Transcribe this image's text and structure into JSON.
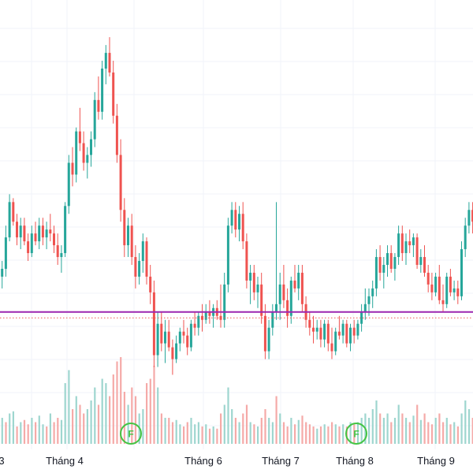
{
  "chart_data": {
    "type": "candlestick",
    "title": "",
    "xlabel": "",
    "ylabel": "",
    "x_ticks": [
      "3",
      "Tháng 4",
      "Tháng 6",
      "Tháng 7",
      "Tháng 8",
      "Tháng 9"
    ],
    "price_range": [
      0,
      100
    ],
    "grid": true,
    "colors": {
      "up": "#26a69a",
      "down": "#ef5350",
      "up_volume": "#9ed6cf",
      "down_volume": "#f5aaa8",
      "level_line": "#9c27b0",
      "dotted_line": "#ef5350",
      "flag": "#43c443",
      "grid": "#f0f3fa",
      "text": "#131722"
    },
    "horizontal_line_price": 38,
    "dotted_line_price": 36.5,
    "flag_markers": [
      {
        "label": "F",
        "near_tick": "Tháng 4"
      },
      {
        "label": "F",
        "near_tick": "Tháng 8"
      }
    ],
    "candles": [
      [
        51,
        52,
        46,
        47
      ],
      [
        47,
        51,
        44,
        49
      ],
      [
        49,
        60,
        47,
        57
      ],
      [
        57,
        68,
        56,
        66
      ],
      [
        66,
        67,
        60,
        61
      ],
      [
        61,
        63,
        55,
        57
      ],
      [
        57,
        62,
        54,
        60
      ],
      [
        60,
        62,
        55,
        56
      ],
      [
        56,
        58,
        51,
        53
      ],
      [
        53,
        60,
        52,
        58
      ],
      [
        58,
        61,
        55,
        56
      ],
      [
        56,
        62,
        54,
        60
      ],
      [
        60,
        62,
        55,
        57
      ],
      [
        57,
        61,
        54,
        59
      ],
      [
        59,
        63,
        56,
        58
      ],
      [
        58,
        60,
        53,
        55
      ],
      [
        55,
        58,
        50,
        52
      ],
      [
        52,
        55,
        48,
        53
      ],
      [
        53,
        66,
        52,
        65
      ],
      [
        65,
        78,
        63,
        76
      ],
      [
        76,
        80,
        70,
        73
      ],
      [
        73,
        85,
        71,
        84
      ],
      [
        84,
        90,
        79,
        81
      ],
      [
        81,
        84,
        74,
        76
      ],
      [
        76,
        80,
        72,
        78
      ],
      [
        78,
        84,
        75,
        82
      ],
      [
        82,
        94,
        80,
        92
      ],
      [
        92,
        98,
        87,
        89
      ],
      [
        89,
        102,
        87,
        100
      ],
      [
        100,
        106,
        96,
        104
      ],
      [
        104,
        108,
        98,
        99
      ],
      [
        99,
        102,
        86,
        88
      ],
      [
        88,
        91,
        76,
        78
      ],
      [
        78,
        82,
        61,
        64
      ],
      [
        64,
        67,
        52,
        55
      ],
      [
        55,
        62,
        52,
        60
      ],
      [
        60,
        63,
        50,
        52
      ],
      [
        52,
        55,
        44,
        47
      ],
      [
        47,
        53,
        45,
        51
      ],
      [
        51,
        58,
        48,
        56
      ],
      [
        56,
        57,
        45,
        47
      ],
      [
        47,
        50,
        40,
        43
      ],
      [
        43,
        46,
        24,
        27
      ],
      [
        27,
        38,
        24,
        35
      ],
      [
        35,
        38,
        28,
        30
      ],
      [
        30,
        36,
        25,
        33
      ],
      [
        33,
        36,
        28,
        29
      ],
      [
        29,
        31,
        22,
        26
      ],
      [
        26,
        32,
        25,
        30
      ],
      [
        30,
        34,
        28,
        33
      ],
      [
        33,
        36,
        30,
        32
      ],
      [
        32,
        34,
        27,
        29
      ],
      [
        29,
        36,
        28,
        35
      ],
      [
        35,
        38,
        32,
        34
      ],
      [
        34,
        38,
        32,
        37
      ],
      [
        37,
        40,
        33,
        36
      ],
      [
        36,
        40,
        35,
        38
      ],
      [
        38,
        41,
        35,
        37
      ],
      [
        37,
        40,
        34,
        39
      ],
      [
        39,
        41,
        36,
        37
      ],
      [
        37,
        45,
        34,
        36
      ],
      [
        36,
        48,
        34,
        45
      ],
      [
        45,
        62,
        43,
        60
      ],
      [
        60,
        66,
        58,
        64
      ],
      [
        64,
        66,
        57,
        59
      ],
      [
        59,
        65,
        56,
        63
      ],
      [
        63,
        66,
        54,
        56
      ],
      [
        56,
        58,
        44,
        46
      ],
      [
        46,
        50,
        40,
        48
      ],
      [
        48,
        50,
        41,
        43
      ],
      [
        43,
        47,
        39,
        45
      ],
      [
        45,
        48,
        35,
        37
      ],
      [
        37,
        40,
        26,
        28
      ],
      [
        28,
        36,
        26,
        34
      ],
      [
        34,
        40,
        32,
        38
      ],
      [
        38,
        66,
        36,
        40
      ],
      [
        40,
        48,
        36,
        45
      ],
      [
        45,
        50,
        39,
        41
      ],
      [
        41,
        44,
        34,
        37
      ],
      [
        37,
        47,
        35,
        46
      ],
      [
        46,
        50,
        43,
        44
      ],
      [
        44,
        50,
        41,
        48
      ],
      [
        48,
        50,
        38,
        40
      ],
      [
        40,
        42,
        34,
        36
      ],
      [
        36,
        38,
        32,
        34
      ],
      [
        34,
        37,
        30,
        33
      ],
      [
        33,
        36,
        31,
        34
      ],
      [
        34,
        36,
        29,
        31
      ],
      [
        31,
        36,
        29,
        35
      ],
      [
        35,
        36,
        28,
        30
      ],
      [
        30,
        34,
        26,
        28
      ],
      [
        28,
        34,
        27,
        33
      ],
      [
        33,
        37,
        31,
        32
      ],
      [
        32,
        36,
        30,
        35
      ],
      [
        35,
        36,
        29,
        30
      ],
      [
        30,
        35,
        28,
        34
      ],
      [
        34,
        36,
        30,
        32
      ],
      [
        32,
        36,
        31,
        35
      ],
      [
        35,
        40,
        33,
        38
      ],
      [
        38,
        44,
        36,
        40
      ],
      [
        40,
        44,
        37,
        42
      ],
      [
        42,
        46,
        39,
        44
      ],
      [
        44,
        54,
        42,
        52
      ],
      [
        52,
        55,
        46,
        48
      ],
      [
        48,
        52,
        44,
        50
      ],
      [
        50,
        55,
        47,
        53
      ],
      [
        53,
        55,
        48,
        49
      ],
      [
        49,
        53,
        46,
        52
      ],
      [
        52,
        60,
        50,
        58
      ],
      [
        58,
        60,
        51,
        53
      ],
      [
        53,
        58,
        50,
        56
      ],
      [
        56,
        59,
        53,
        55
      ],
      [
        55,
        58,
        52,
        57
      ],
      [
        57,
        58,
        49,
        50
      ],
      [
        50,
        54,
        48,
        52
      ],
      [
        52,
        55,
        47,
        48
      ],
      [
        48,
        50,
        43,
        45
      ],
      [
        45,
        48,
        41,
        43
      ],
      [
        43,
        48,
        42,
        47
      ],
      [
        47,
        50,
        40,
        41
      ],
      [
        41,
        45,
        38,
        40
      ],
      [
        40,
        48,
        39,
        47
      ],
      [
        47,
        49,
        42,
        43
      ],
      [
        43,
        46,
        41,
        44
      ],
      [
        44,
        46,
        40,
        42
      ],
      [
        42,
        56,
        41,
        54
      ],
      [
        54,
        62,
        52,
        60
      ],
      [
        60,
        66,
        58,
        64
      ],
      [
        64,
        66,
        58,
        61
      ],
      [
        61,
        66,
        57,
        59
      ]
    ],
    "volume": [
      [
        9,
        "up"
      ],
      [
        12,
        "up"
      ],
      [
        10,
        "down"
      ],
      [
        14,
        "up"
      ],
      [
        15,
        "up"
      ],
      [
        8,
        "down"
      ],
      [
        10,
        "up"
      ],
      [
        11,
        "down"
      ],
      [
        9,
        "down"
      ],
      [
        12,
        "up"
      ],
      [
        10,
        "down"
      ],
      [
        13,
        "up"
      ],
      [
        9,
        "up"
      ],
      [
        8,
        "down"
      ],
      [
        14,
        "up"
      ],
      [
        10,
        "down"
      ],
      [
        12,
        "down"
      ],
      [
        11,
        "up"
      ],
      [
        28,
        "up"
      ],
      [
        34,
        "up"
      ],
      [
        16,
        "down"
      ],
      [
        22,
        "up"
      ],
      [
        18,
        "down"
      ],
      [
        14,
        "down"
      ],
      [
        16,
        "up"
      ],
      [
        20,
        "up"
      ],
      [
        26,
        "up"
      ],
      [
        18,
        "down"
      ],
      [
        30,
        "up"
      ],
      [
        28,
        "up"
      ],
      [
        22,
        "down"
      ],
      [
        32,
        "down"
      ],
      [
        38,
        "down"
      ],
      [
        40,
        "down"
      ],
      [
        24,
        "down"
      ],
      [
        18,
        "up"
      ],
      [
        26,
        "down"
      ],
      [
        22,
        "down"
      ],
      [
        14,
        "up"
      ],
      [
        16,
        "up"
      ],
      [
        28,
        "down"
      ],
      [
        30,
        "down"
      ],
      [
        36,
        "down"
      ],
      [
        26,
        "up"
      ],
      [
        14,
        "down"
      ],
      [
        12,
        "up"
      ],
      [
        12,
        "down"
      ],
      [
        10,
        "down"
      ],
      [
        11,
        "up"
      ],
      [
        9,
        "up"
      ],
      [
        8,
        "down"
      ],
      [
        10,
        "down"
      ],
      [
        12,
        "up"
      ],
      [
        9,
        "up"
      ],
      [
        10,
        "up"
      ],
      [
        8,
        "down"
      ],
      [
        9,
        "up"
      ],
      [
        7,
        "down"
      ],
      [
        8,
        "up"
      ],
      [
        7,
        "down"
      ],
      [
        14,
        "down"
      ],
      [
        18,
        "up"
      ],
      [
        26,
        "up"
      ],
      [
        16,
        "up"
      ],
      [
        12,
        "down"
      ],
      [
        10,
        "up"
      ],
      [
        14,
        "down"
      ],
      [
        18,
        "down"
      ],
      [
        10,
        "up"
      ],
      [
        9,
        "down"
      ],
      [
        8,
        "up"
      ],
      [
        12,
        "down"
      ],
      [
        16,
        "down"
      ],
      [
        12,
        "up"
      ],
      [
        10,
        "up"
      ],
      [
        22,
        "down"
      ],
      [
        14,
        "up"
      ],
      [
        10,
        "down"
      ],
      [
        8,
        "down"
      ],
      [
        12,
        "up"
      ],
      [
        9,
        "down"
      ],
      [
        11,
        "up"
      ],
      [
        13,
        "down"
      ],
      [
        10,
        "down"
      ],
      [
        9,
        "down"
      ],
      [
        8,
        "down"
      ],
      [
        7,
        "up"
      ],
      [
        8,
        "down"
      ],
      [
        9,
        "up"
      ],
      [
        8,
        "down"
      ],
      [
        10,
        "down"
      ],
      [
        9,
        "up"
      ],
      [
        8,
        "down"
      ],
      [
        9,
        "up"
      ],
      [
        8,
        "down"
      ],
      [
        10,
        "up"
      ],
      [
        9,
        "down"
      ],
      [
        10,
        "up"
      ],
      [
        12,
        "up"
      ],
      [
        14,
        "up"
      ],
      [
        12,
        "up"
      ],
      [
        16,
        "up"
      ],
      [
        20,
        "up"
      ],
      [
        14,
        "down"
      ],
      [
        12,
        "up"
      ],
      [
        14,
        "up"
      ],
      [
        10,
        "down"
      ],
      [
        12,
        "up"
      ],
      [
        18,
        "up"
      ],
      [
        14,
        "down"
      ],
      [
        12,
        "up"
      ],
      [
        10,
        "down"
      ],
      [
        13,
        "up"
      ],
      [
        18,
        "down"
      ],
      [
        11,
        "up"
      ],
      [
        14,
        "down"
      ],
      [
        10,
        "down"
      ],
      [
        9,
        "down"
      ],
      [
        12,
        "up"
      ],
      [
        14,
        "down"
      ],
      [
        10,
        "down"
      ],
      [
        12,
        "up"
      ],
      [
        9,
        "down"
      ],
      [
        10,
        "up"
      ],
      [
        8,
        "down"
      ],
      [
        14,
        "up"
      ],
      [
        20,
        "up"
      ],
      [
        16,
        "up"
      ],
      [
        12,
        "down"
      ],
      [
        14,
        "down"
      ]
    ]
  }
}
